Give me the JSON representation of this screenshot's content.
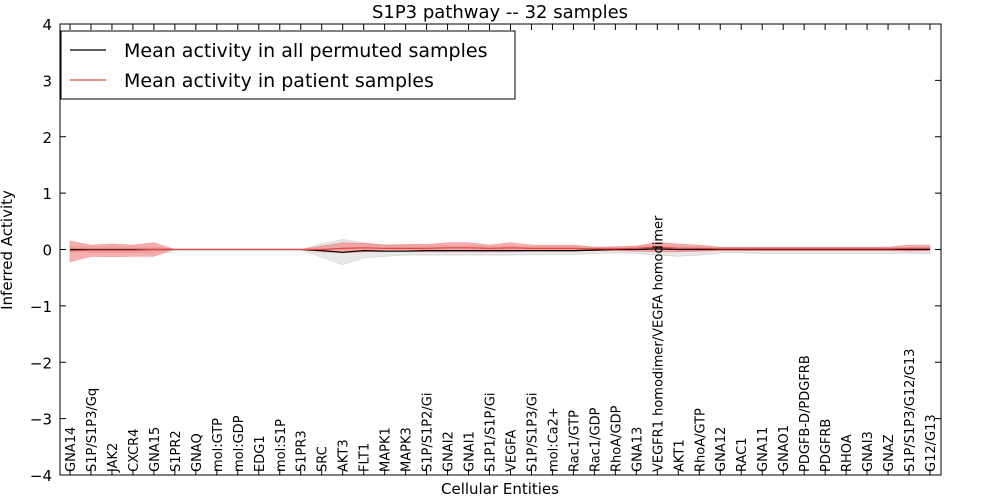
{
  "chart_data": {
    "type": "line",
    "title": "S1P3 pathway -- 32 samples",
    "xlabel": "Cellular Entities",
    "ylabel": "Inferred Activity",
    "ylim": [
      -4,
      4
    ],
    "yticks": [
      {
        "value": 4,
        "label": "4"
      },
      {
        "value": 3,
        "label": "3"
      },
      {
        "value": 2,
        "label": "2"
      },
      {
        "value": 1,
        "label": "1"
      },
      {
        "value": 0,
        "label": "0"
      },
      {
        "value": -1,
        "label": "−1"
      },
      {
        "value": -2,
        "label": "−2"
      },
      {
        "value": -3,
        "label": "−3"
      },
      {
        "value": -4,
        "label": "−4"
      }
    ],
    "legend_position": "top-left",
    "categories": [
      "GNA14",
      "S1P/S1P3/Gq",
      "JAK2",
      "CXCR4",
      "GNA15",
      "S1PR2",
      "GNAQ",
      "mol:GTP",
      "mol:GDP",
      "EDG1",
      "mol:S1P",
      "S1PR3",
      "SRC",
      "AKT3",
      "FLT1",
      "MAPK1",
      "MAPK3",
      "S1P/S1P2/Gi",
      "GNAI2",
      "GNAI1",
      "S1P1/S1P/Gi",
      "VEGFA",
      "S1P/S1P3/Gi",
      "mol:Ca2+",
      "Rac1/GTP",
      "Rac1/GDP",
      "RhoA/GDP",
      "GNA13",
      "VEGFR1 homodimer/VEGFA homodimer",
      "AKT1",
      "RhoA/GTP",
      "GNA12",
      "RAC1",
      "GNA11",
      "GNAO1",
      "PDGFB-D/PDGFRB",
      "PDGFRB",
      "RHOA",
      "GNAI3",
      "GNAZ",
      "S1P/S1P3/G12/G13",
      "G12/G13"
    ],
    "series": [
      {
        "name": "Mean activity in all permuted samples",
        "color": "#000000",
        "band_color": "#bbbbbb",
        "values": [
          0.0,
          0.0,
          0.0,
          0.0,
          0.0,
          0.0,
          0.0,
          0.0,
          0.0,
          0.0,
          0.0,
          0.0,
          -0.02,
          -0.05,
          -0.02,
          -0.03,
          -0.03,
          -0.02,
          -0.02,
          -0.02,
          -0.02,
          -0.02,
          -0.02,
          -0.02,
          -0.02,
          -0.01,
          0.0,
          0.0,
          0.01,
          0.0,
          0.0,
          0.0,
          0.0,
          0.0,
          0.0,
          0.0,
          0.0,
          0.0,
          0.0,
          0.0,
          0.0,
          0.0
        ],
        "band_upper": [
          0.05,
          0.05,
          0.05,
          0.05,
          0.05,
          0.0,
          0.0,
          0.0,
          0.0,
          0.0,
          0.0,
          0.0,
          0.1,
          0.18,
          0.12,
          0.08,
          0.07,
          0.06,
          0.07,
          0.07,
          0.06,
          0.06,
          0.05,
          0.05,
          0.05,
          0.04,
          0.04,
          0.05,
          0.08,
          0.06,
          0.05,
          0.04,
          0.04,
          0.04,
          0.04,
          0.04,
          0.04,
          0.04,
          0.04,
          0.04,
          0.04,
          0.04
        ],
        "band_lower": [
          -0.05,
          -0.05,
          -0.05,
          -0.05,
          -0.05,
          0.0,
          0.0,
          0.0,
          0.0,
          0.0,
          0.0,
          0.0,
          -0.14,
          -0.27,
          -0.15,
          -0.12,
          -0.1,
          -0.1,
          -0.1,
          -0.1,
          -0.1,
          -0.1,
          -0.09,
          -0.09,
          -0.09,
          -0.07,
          -0.06,
          -0.07,
          -0.1,
          -0.12,
          -0.1,
          -0.06,
          -0.06,
          -0.07,
          -0.07,
          -0.07,
          -0.07,
          -0.07,
          -0.07,
          -0.07,
          -0.07,
          -0.08
        ]
      },
      {
        "name": "Mean activity in patient samples",
        "color": "#e8453c",
        "band_color": "#f26d6d",
        "values": [
          -0.02,
          -0.01,
          -0.01,
          -0.01,
          0.0,
          0.0,
          0.0,
          0.0,
          0.0,
          0.0,
          0.0,
          0.0,
          0.0,
          0.02,
          0.03,
          0.02,
          0.02,
          0.02,
          0.03,
          0.03,
          0.02,
          0.03,
          0.02,
          0.02,
          0.02,
          0.01,
          0.01,
          0.02,
          0.04,
          0.02,
          0.02,
          0.01,
          0.01,
          0.01,
          0.01,
          0.01,
          0.01,
          0.01,
          0.01,
          0.01,
          0.02,
          0.02
        ],
        "band_upper": [
          0.15,
          0.08,
          0.1,
          0.08,
          0.12,
          0.0,
          0.0,
          0.0,
          0.0,
          0.0,
          0.0,
          0.0,
          0.06,
          0.12,
          0.11,
          0.08,
          0.09,
          0.09,
          0.12,
          0.12,
          0.08,
          0.12,
          0.08,
          0.08,
          0.08,
          0.04,
          0.05,
          0.06,
          0.13,
          0.1,
          0.08,
          0.04,
          0.04,
          0.04,
          0.04,
          0.04,
          0.04,
          0.04,
          0.04,
          0.04,
          0.08,
          0.08
        ],
        "band_lower": [
          -0.22,
          -0.12,
          -0.13,
          -0.12,
          -0.12,
          0.0,
          0.0,
          0.0,
          0.0,
          0.0,
          0.0,
          0.0,
          -0.04,
          -0.06,
          -0.04,
          -0.03,
          -0.03,
          -0.04,
          -0.04,
          -0.04,
          -0.04,
          -0.04,
          -0.03,
          -0.03,
          -0.03,
          -0.02,
          -0.02,
          -0.03,
          -0.04,
          -0.04,
          -0.03,
          -0.02,
          -0.02,
          -0.02,
          -0.02,
          -0.02,
          -0.02,
          -0.02,
          -0.02,
          -0.02,
          -0.03,
          -0.02
        ]
      }
    ]
  }
}
